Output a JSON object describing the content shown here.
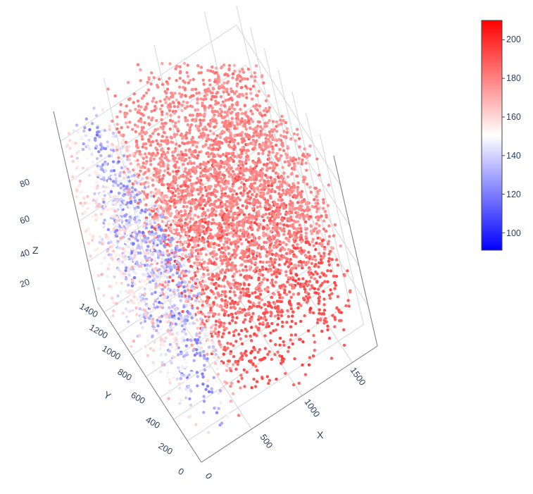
{
  "chart_data": {
    "type": "scatter",
    "mode": "3d",
    "x_axis": {
      "title": "X",
      "range": [
        0,
        1750
      ],
      "ticks": [
        "0",
        "500",
        "1000",
        "1500"
      ]
    },
    "y_axis": {
      "title": "Y",
      "range": [
        0,
        1500
      ],
      "ticks": [
        "0",
        "200",
        "400",
        "600",
        "800",
        "1000",
        "1200",
        "1400"
      ]
    },
    "z_axis": {
      "title": "Z",
      "range": [
        0,
        95
      ],
      "ticks": [
        "20",
        "40",
        "60",
        "80"
      ]
    },
    "colorbar": {
      "range": [
        91,
        210
      ],
      "ticks": [
        "100",
        "120",
        "140",
        "160",
        "180",
        "200"
      ],
      "colorscale": [
        "#0000ff",
        "#ffffff",
        "#ff0000"
      ]
    },
    "grid": true,
    "legend": "none",
    "series": [
      {
        "color_values": "91-210",
        "points_x": [
          0,
          1750
        ],
        "points_y": [
          0,
          1500
        ],
        "points_z": [
          0,
          95
        ]
      }
    ]
  }
}
